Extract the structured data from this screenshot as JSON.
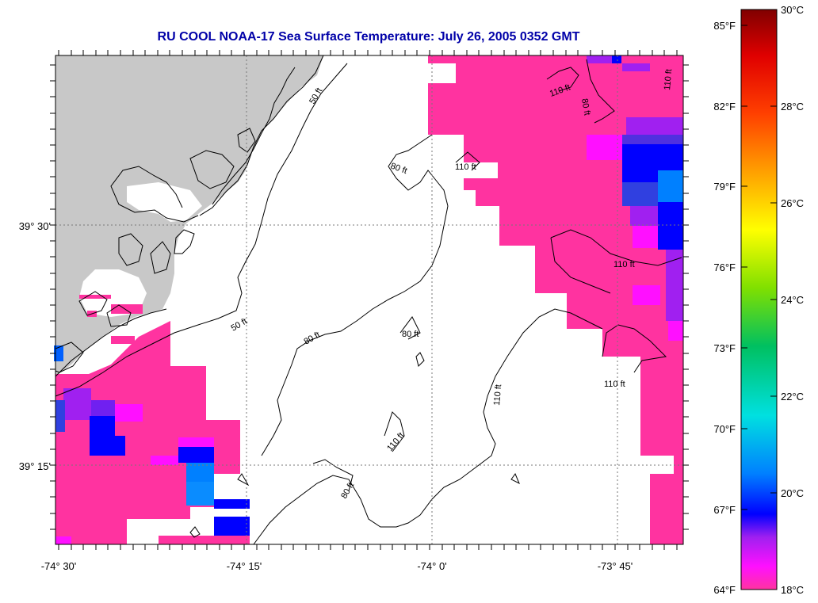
{
  "title": "RU COOL  NOAA-17  Sea Surface Temperature:  July 26, 2005 0352 GMT",
  "lon_ticks": [
    "-74° 30'",
    "-74° 15'",
    "-74° 0'",
    "-73° 45'"
  ],
  "lat_ticks": [
    "39° 30'",
    "39° 15'"
  ],
  "contour_labels": [
    {
      "text": "50 ft",
      "id": "c50a"
    },
    {
      "text": "50 ft",
      "id": "c50b"
    },
    {
      "text": "80 ft",
      "id": "c80a"
    },
    {
      "text": "80 ft",
      "id": "c80b"
    },
    {
      "text": "80 ft",
      "id": "c80c"
    },
    {
      "text": "80 ft",
      "id": "c80d"
    },
    {
      "text": "80 ft",
      "id": "c80e"
    },
    {
      "text": "110 ft",
      "id": "c110a"
    },
    {
      "text": "110 ft",
      "id": "c110b"
    },
    {
      "text": "110 ft",
      "id": "c110c"
    },
    {
      "text": "110 ft",
      "id": "c110d"
    },
    {
      "text": "110 ft",
      "id": "c110e"
    },
    {
      "text": "110 ft",
      "id": "c110f"
    },
    {
      "text": "110 ft",
      "id": "c110g"
    }
  ],
  "colorbar": {
    "fahrenheit": [
      "85°F",
      "82°F",
      "79°F",
      "76°F",
      "73°F",
      "70°F",
      "67°F",
      "64°F"
    ],
    "celsius": [
      "30°C",
      "28°C",
      "26°C",
      "24°C",
      "22°C",
      "20°C",
      "18°C"
    ]
  },
  "colors": {
    "land": "#c8c8c8",
    "sst_18c": "#ff33a0",
    "sst_magenta": "#ff10ff",
    "sst_violet": "#a020f0",
    "sst_blue": "#0000ff",
    "sst_lightblue": "#0080ff",
    "title": "#0000a8"
  }
}
